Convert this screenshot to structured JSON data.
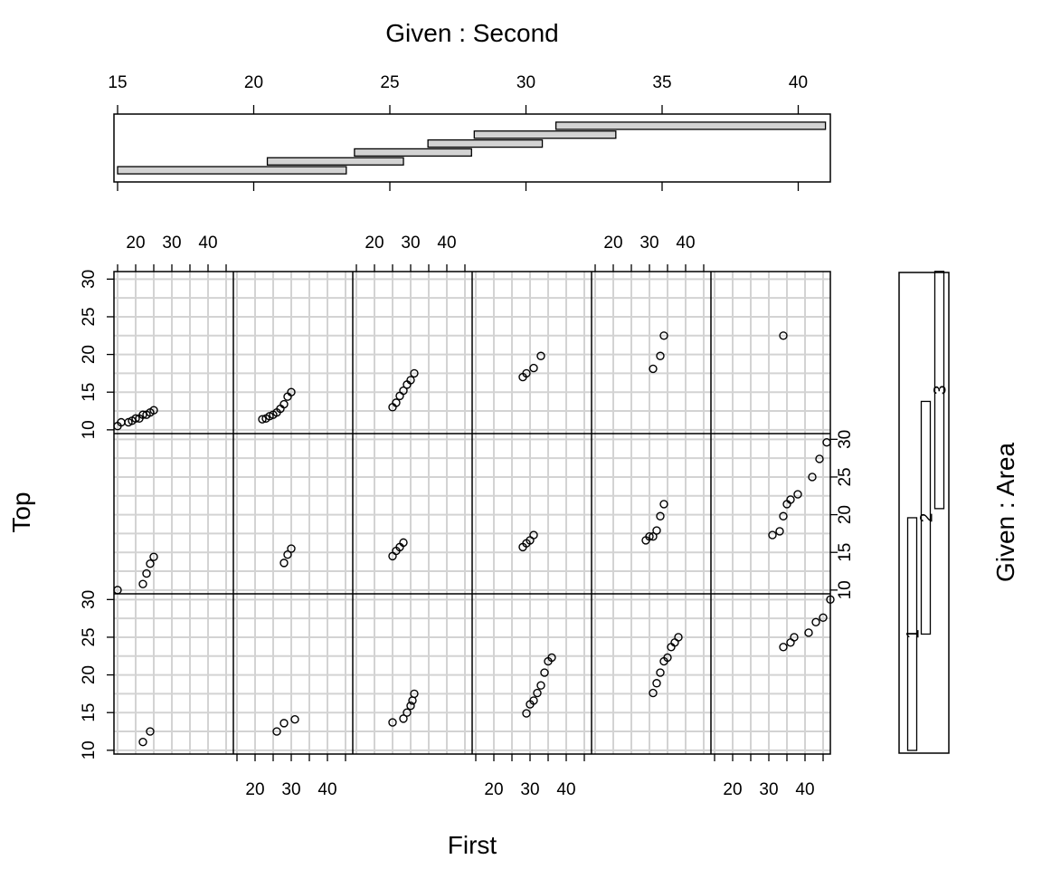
{
  "chart_data": {
    "type": "scatter",
    "subtype": "coplot",
    "xlabel": "First",
    "ylabel": "Top",
    "given_x": {
      "label": "Given : Second",
      "ticks": [
        15,
        20,
        25,
        30,
        35,
        40
      ],
      "range": [
        15,
        41
      ],
      "intervals": [
        [
          15,
          23.4
        ],
        [
          20.5,
          25.5
        ],
        [
          23.7,
          28
        ],
        [
          26.4,
          30.6
        ],
        [
          28.1,
          33.3
        ],
        [
          31.1,
          41
        ]
      ]
    },
    "given_y": {
      "label": "Given : Area",
      "ticks": [
        "1",
        "2",
        "3"
      ],
      "intervals": [
        [
          10,
          20.2
        ],
        [
          15.1,
          25.3
        ],
        [
          20.6,
          31
        ]
      ]
    },
    "x_ticks": [
      20,
      30,
      40
    ],
    "x_range": [
      14,
      47
    ],
    "y_ticks": [
      10,
      15,
      20,
      25,
      30
    ],
    "y_range": [
      9.5,
      31
    ],
    "panels": [
      {
        "row": 1,
        "col": 1,
        "points": [
          [
            15,
            10.5
          ],
          [
            16,
            11
          ],
          [
            18,
            11
          ],
          [
            19,
            11.2
          ],
          [
            20,
            11.5
          ],
          [
            21,
            11.5
          ],
          [
            22,
            12
          ],
          [
            23,
            12
          ],
          [
            24,
            12.3
          ],
          [
            25,
            12.6
          ]
        ]
      },
      {
        "row": 1,
        "col": 2,
        "points": [
          [
            22,
            11.4
          ],
          [
            23,
            11.5
          ],
          [
            24,
            11.8
          ],
          [
            25,
            12
          ],
          [
            26,
            12.3
          ],
          [
            27,
            12.8
          ],
          [
            28,
            13.4
          ],
          [
            29,
            14.4
          ],
          [
            30,
            15
          ]
        ]
      },
      {
        "row": 1,
        "col": 3,
        "points": [
          [
            25,
            13
          ],
          [
            26,
            13.6
          ],
          [
            27,
            14.5
          ],
          [
            28,
            15.2
          ],
          [
            29,
            16
          ],
          [
            30,
            16.6
          ],
          [
            31,
            17.5
          ]
        ]
      },
      {
        "row": 1,
        "col": 4,
        "points": [
          [
            28,
            17
          ],
          [
            29,
            17.5
          ],
          [
            31,
            18.2
          ],
          [
            33,
            19.8
          ]
        ]
      },
      {
        "row": 1,
        "col": 5,
        "points": [
          [
            31,
            18.1
          ],
          [
            33,
            19.8
          ],
          [
            34,
            22.5
          ]
        ]
      },
      {
        "row": 1,
        "col": 6,
        "points": [
          [
            34,
            22.5
          ]
        ]
      },
      {
        "row": 2,
        "col": 1,
        "points": [
          [
            15,
            10
          ],
          [
            22,
            10.8
          ],
          [
            23,
            12.2
          ],
          [
            24,
            13.5
          ],
          [
            25,
            14.4
          ]
        ]
      },
      {
        "row": 2,
        "col": 2,
        "points": [
          [
            28,
            13.6
          ],
          [
            29,
            14.7
          ],
          [
            30,
            15.5
          ]
        ]
      },
      {
        "row": 2,
        "col": 3,
        "points": [
          [
            25,
            14.5
          ],
          [
            26,
            15.2
          ],
          [
            27,
            15.7
          ],
          [
            28,
            16.3
          ]
        ]
      },
      {
        "row": 2,
        "col": 4,
        "points": [
          [
            28,
            15.7
          ],
          [
            29,
            16.2
          ],
          [
            30,
            16.6
          ],
          [
            31,
            17.3
          ]
        ]
      },
      {
        "row": 2,
        "col": 5,
        "points": [
          [
            29,
            16.6
          ],
          [
            30,
            17.1
          ],
          [
            31,
            17.1
          ],
          [
            32,
            17.9
          ],
          [
            33,
            19.8
          ],
          [
            34,
            21.4
          ]
        ]
      },
      {
        "row": 2,
        "col": 6,
        "points": [
          [
            31,
            17.3
          ],
          [
            33,
            17.8
          ],
          [
            34,
            19.8
          ],
          [
            35,
            21.4
          ],
          [
            36,
            22
          ],
          [
            38,
            22.7
          ],
          [
            42,
            25
          ],
          [
            44,
            27.4
          ],
          [
            46,
            29.6
          ]
        ]
      },
      {
        "row": 3,
        "col": 1,
        "points": [
          [
            22,
            11.1
          ],
          [
            24,
            12.5
          ]
        ]
      },
      {
        "row": 3,
        "col": 2,
        "points": [
          [
            26,
            12.5
          ],
          [
            28,
            13.6
          ],
          [
            31,
            14.1
          ]
        ]
      },
      {
        "row": 3,
        "col": 3,
        "points": [
          [
            25,
            13.7
          ],
          [
            28,
            14.2
          ],
          [
            29,
            15
          ],
          [
            30,
            15.9
          ],
          [
            30.5,
            16.6
          ],
          [
            31,
            17.5
          ]
        ]
      },
      {
        "row": 3,
        "col": 4,
        "points": [
          [
            29,
            14.9
          ],
          [
            30,
            16.1
          ],
          [
            31,
            16.6
          ],
          [
            32,
            17.6
          ],
          [
            33,
            18.6
          ],
          [
            34,
            20.3
          ],
          [
            35,
            21.8
          ],
          [
            36,
            22.3
          ]
        ]
      },
      {
        "row": 3,
        "col": 5,
        "points": [
          [
            31,
            17.6
          ],
          [
            32,
            18.9
          ],
          [
            33,
            20.3
          ],
          [
            34,
            21.8
          ],
          [
            35,
            22.3
          ],
          [
            36,
            23.7
          ],
          [
            37,
            24.3
          ],
          [
            38,
            25
          ]
        ]
      },
      {
        "row": 3,
        "col": 6,
        "points": [
          [
            34,
            23.7
          ],
          [
            36,
            24.3
          ],
          [
            37,
            25
          ],
          [
            41,
            25.6
          ],
          [
            43,
            27
          ],
          [
            45,
            27.6
          ],
          [
            47,
            30
          ]
        ]
      }
    ]
  }
}
